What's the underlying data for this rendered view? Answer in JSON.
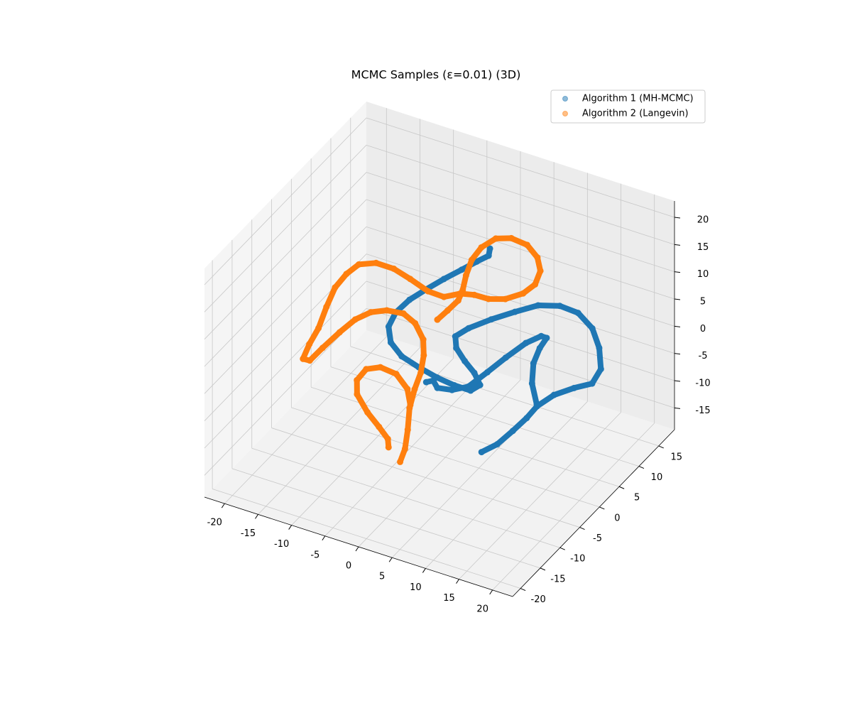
{
  "chart_data": {
    "type": "scatter3d",
    "title": "MCMC Samples (ε=0.01) (3D)",
    "xlim": [
      -23,
      23
    ],
    "ylim": [
      -22,
      19
    ],
    "zlim": [
      -19,
      23
    ],
    "xticks": [
      -20,
      -15,
      -10,
      -5,
      0,
      5,
      10,
      15,
      20
    ],
    "yticks": [
      -20,
      -15,
      -10,
      -5,
      0,
      5,
      10,
      15
    ],
    "zticks": [
      -15,
      -10,
      -5,
      0,
      5,
      10,
      15,
      20
    ],
    "grid": true,
    "legend": "upper right",
    "series": [
      {
        "name": "Algorithm 1 (MH-MCMC)",
        "color": "#1f77b4",
        "x": [
          8.4,
          10.1,
          11.6,
          12.9,
          13.8,
          15.5,
          17.8,
          19.9,
          20.5,
          19.6,
          18.1,
          15.8,
          13.3,
          10.6,
          7.9,
          5.2,
          2.7,
          1.3,
          1.8,
          3.3,
          4.9,
          6.0,
          5.0,
          2.8,
          0.4,
          -2.2,
          -4.7,
          -6.5,
          -7.3,
          -6.9,
          -5.6,
          -3.9,
          -2.0,
          -0.1,
          1.5,
          2.8,
          2.7,
          null,
          -0.8,
          0.0,
          0.8,
          2.7,
          4.6,
          6.5,
          8.3,
          10.3,
          12.0,
          12.7,
          12.2,
          11.9,
          12.4,
          13.7
        ],
        "y": [
          -5.1,
          -4.0,
          -2.6,
          -1.3,
          -0.2,
          1.2,
          2.4,
          3.4,
          4.6,
          5.7,
          6.5,
          6.8,
          6.4,
          5.5,
          4.2,
          2.8,
          1.3,
          0.3,
          -0.3,
          -0.7,
          -1.0,
          -1.4,
          -2.1,
          -2.5,
          -2.8,
          -3.0,
          -3.1,
          -2.8,
          -2.0,
          -0.9,
          0.4,
          1.7,
          3.0,
          4.3,
          5.4,
          6.2,
          6.7,
          null,
          -3.5,
          -3.1,
          -3.4,
          -2.9,
          -2.0,
          -0.4,
          1.2,
          2.9,
          3.9,
          4.1,
          3.2,
          2.1,
          0.9,
          -0.1
        ],
        "z": [
          -10.9,
          -9.6,
          -7.6,
          -5.7,
          -4.0,
          -2.3,
          -1.0,
          -0.1,
          1.9,
          4.6,
          7.0,
          8.7,
          9.3,
          9.0,
          7.7,
          6.3,
          4.8,
          3.5,
          2.0,
          0.5,
          -0.8,
          -2.3,
          -3.2,
          -2.8,
          -2.1,
          -1.1,
          0.0,
          1.6,
          3.6,
          5.5,
          7.4,
          9.0,
          10.7,
          12.2,
          13.5,
          14.5,
          15.4,
          null,
          -2.9,
          -2.6,
          -3.4,
          -3.4,
          -2.7,
          -0.5,
          1.7,
          3.9,
          5.1,
          4.9,
          3.5,
          1.4,
          -1.2,
          -3.8
        ]
      },
      {
        "name": "Algorithm 2 (Langevin)",
        "color": "#ff7f0e",
        "x": [
          -1.5,
          -0.5,
          0.5,
          0.7,
          0.6,
          0.8,
          1.6,
          3.1,
          5.0,
          7.2,
          8.9,
          9.7,
          9.5,
          8.3,
          6.3,
          4.2,
          2.3,
          0.5,
          -1.4,
          -3.6,
          -6.2,
          -8.6,
          -11.0,
          -13.1,
          -14.3,
          -15.3,
          -15.7,
          -16.0,
          -16.6,
          -16.9,
          -16.0,
          -14.8,
          -13.2,
          -11.7,
          -10.0,
          -8.1,
          -5.9,
          -4.1,
          -2.6,
          -2.0,
          -1.8,
          -2.0,
          -2.0,
          -1.5,
          -1.2,
          -1.4,
          null,
          -3.3,
          -3.7,
          -5.2,
          -7.1,
          -9.0,
          -9.5,
          -8.7,
          -7.0,
          -4.8,
          -2.9,
          -2.0
        ],
        "y": [
          0.5,
          1.4,
          2.4,
          3.2,
          4.2,
          5.3,
          6.4,
          7.5,
          8.2,
          8.5,
          8.2,
          7.6,
          6.6,
          5.6,
          4.5,
          3.8,
          3.4,
          2.9,
          2.0,
          1.7,
          1.6,
          1.5,
          1.1,
          0.3,
          -0.8,
          -2.0,
          -3.5,
          -5.0,
          -6.3,
          -7.4,
          -7.2,
          -6.0,
          -4.4,
          -3.0,
          -1.9,
          -1.1,
          -0.6,
          -0.7,
          -1.2,
          -2.1,
          -3.2,
          -4.4,
          -5.7,
          -7.0,
          -8.2,
          -9.1,
          null,
          -8.8,
          -8.3,
          -8.0,
          -7.7,
          -7.1,
          -6.3,
          -5.3,
          -4.6,
          -4.3,
          -4.7,
          -5.5
        ],
        "z": [
          5.3,
          6.7,
          8.2,
          9.6,
          11.5,
          13.6,
          15.4,
          16.8,
          17.1,
          16.5,
          15.1,
          13.4,
          11.6,
          10.2,
          9.2,
          8.9,
          9.2,
          9.1,
          8.4,
          8.8,
          10.1,
          11.1,
          11.5,
          11.0,
          9.6,
          7.6,
          5.0,
          2.1,
          -0.1,
          -2.1,
          -2.2,
          -0.3,
          2.0,
          3.9,
          5.1,
          5.6,
          5.5,
          4.5,
          2.5,
          0.5,
          -1.8,
          -4.0,
          -6.5,
          -9.3,
          -11.8,
          -13.6,
          null,
          -11.9,
          -10.9,
          -9.5,
          -7.8,
          -5.7,
          -3.9,
          -2.3,
          -1.8,
          -2.4,
          -4.1,
          -6.1
        ]
      }
    ]
  }
}
